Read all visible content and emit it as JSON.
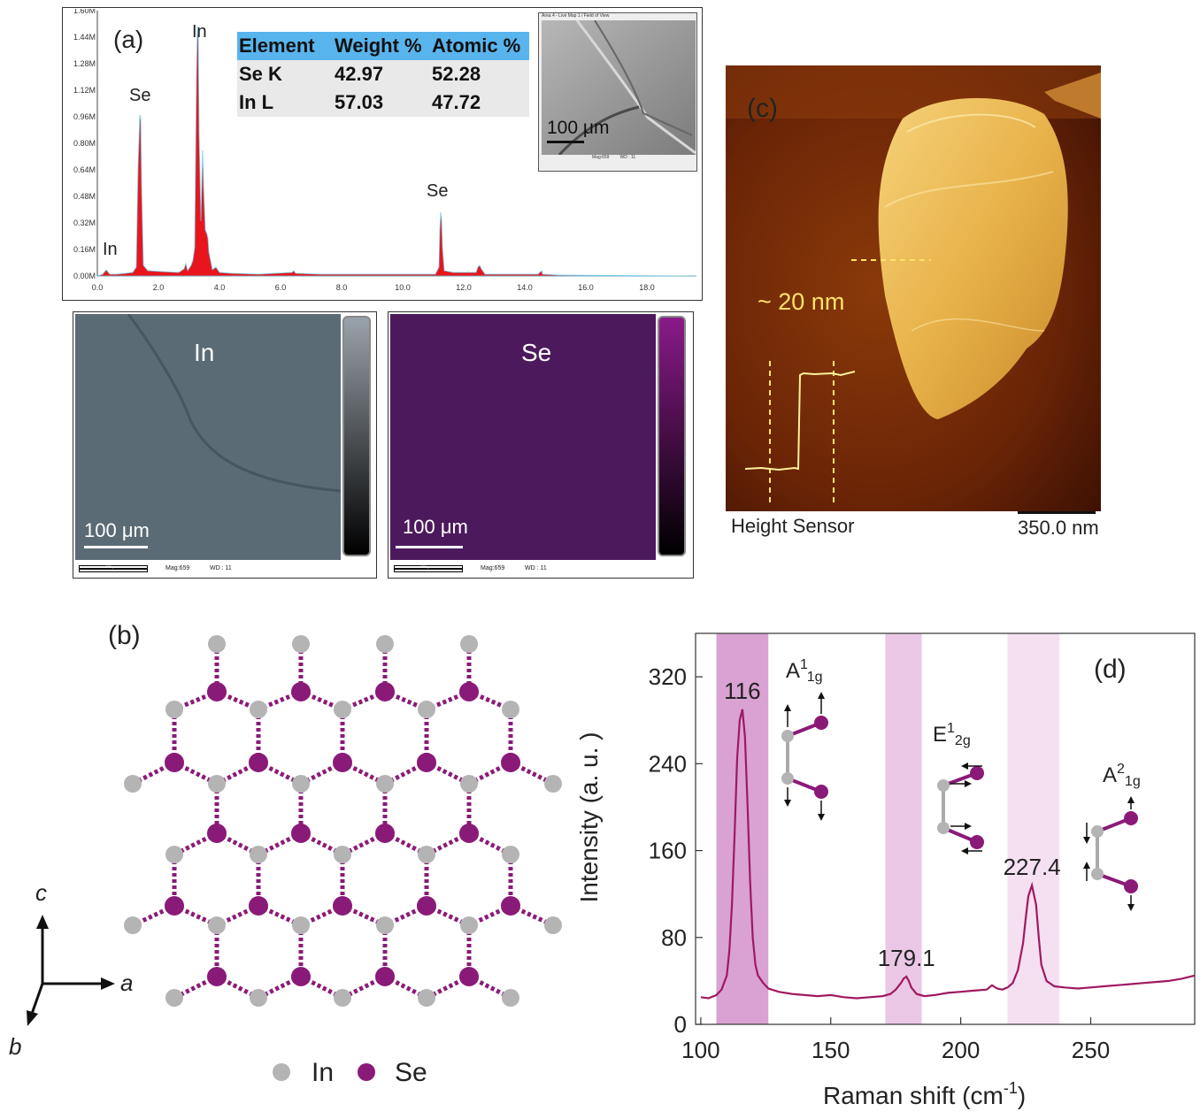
{
  "panel_a": {
    "label": "(a)",
    "spectrum": {
      "y_ticks": [
        "1.60M",
        "1.44M",
        "1.28M",
        "1.12M",
        "0.96M",
        "0.80M",
        "0.64M",
        "0.48M",
        "0.32M",
        "0.16M",
        "0.00M"
      ],
      "x_ticks": [
        "0.0",
        "2.0",
        "4.0",
        "6.0",
        "8.0",
        "10.0",
        "12.0",
        "14.0",
        "16.0",
        "18.0"
      ],
      "peak_labels": [
        "In",
        "Se",
        "In",
        "Se"
      ]
    },
    "table": {
      "headers": [
        "Element",
        "Weight %",
        "Atomic %"
      ],
      "rows": [
        [
          "Se K",
          "42.97",
          "52.28"
        ],
        [
          "In L",
          "57.03",
          "47.72"
        ]
      ]
    },
    "sem_inset": {
      "title": "Area 4 - Live Map 1 / Field of View",
      "scale": "100 μm",
      "mag": "Mag:659",
      "wd": "WD : 11"
    },
    "maps": [
      {
        "element": "In",
        "scale": "100 μm",
        "scale_small": "100 μm",
        "mag": "Mag:659",
        "wd": "WD : 11",
        "color": "#5b6b75"
      },
      {
        "element": "Se",
        "scale": "100 μm",
        "scale_small": "100 μm",
        "mag": "Mag:659",
        "wd": "WD : 11",
        "color": "#4c1a5c"
      }
    ]
  },
  "panel_b": {
    "label": "(b)",
    "axes": {
      "c": "c",
      "a": "a",
      "b": "b"
    },
    "legend": [
      {
        "name": "In",
        "color": "#b4b4b4"
      },
      {
        "name": "Se",
        "color": "#8a1a78"
      }
    ]
  },
  "panel_c": {
    "label": "(c)",
    "height_label": "~ 20 nm",
    "sensor_label": "Height Sensor",
    "scale_label": "350.0 nm"
  },
  "panel_d": {
    "label": "(d)",
    "modes": [
      {
        "pre": "A",
        "sup": "1",
        "sub": "1g"
      },
      {
        "pre": "E",
        "sup": "1",
        "sub": "2g"
      },
      {
        "pre": "A",
        "sup": "2",
        "sub": "1g"
      }
    ]
  },
  "chart_data": {
    "type": "line",
    "xlabel": "Raman shift (cm",
    "xlabel_sup": "-1",
    "xlabel_end": ")",
    "ylabel": "Intensity (a. u. )",
    "xlim": [
      98,
      290
    ],
    "ylim": [
      0,
      360
    ],
    "x_ticks": [
      100,
      150,
      200,
      250
    ],
    "y_ticks": [
      0,
      80,
      160,
      240,
      320
    ],
    "series": [
      {
        "color": "#a01860",
        "x": [
          100,
          103,
          106,
          108,
          110,
          111,
          112,
          113,
          114,
          115,
          116,
          117,
          118,
          119,
          120,
          121,
          122,
          124,
          126,
          130,
          135,
          140,
          145,
          150,
          155,
          160,
          165,
          170,
          173,
          175,
          177,
          178,
          179.1,
          180,
          181,
          183,
          186,
          190,
          195,
          200,
          205,
          210,
          212,
          214,
          216,
          218,
          220,
          222,
          224,
          225,
          226,
          227.4,
          229,
          230,
          231,
          233,
          236,
          240,
          245,
          250,
          255,
          260,
          265,
          270,
          275,
          280,
          285,
          290
        ],
        "y": [
          25,
          24,
          27,
          32,
          45,
          68,
          110,
          175,
          245,
          280,
          290,
          265,
          200,
          130,
          80,
          55,
          45,
          38,
          33,
          30,
          28,
          27,
          26,
          27,
          25,
          24,
          25,
          26,
          28,
          32,
          38,
          42,
          44,
          40,
          34,
          28,
          26,
          27,
          29,
          30,
          31,
          32,
          36,
          33,
          32,
          34,
          38,
          50,
          75,
          98,
          118,
          128,
          110,
          80,
          55,
          40,
          35,
          34,
          33,
          34,
          35,
          36,
          37,
          38,
          39,
          40,
          42,
          45
        ]
      }
    ],
    "peak_labels": [
      {
        "x": 116,
        "y": 290,
        "text": "116"
      },
      {
        "x": 179.1,
        "y": 44,
        "text": "179.1"
      },
      {
        "x": 227.4,
        "y": 128,
        "text": "227.4"
      }
    ],
    "bands": [
      {
        "x0": 106,
        "x1": 126,
        "color": "#c97ac0",
        "opacity": 0.7
      },
      {
        "x0": 171,
        "x1": 185,
        "color": "#d89ad0",
        "opacity": 0.55
      },
      {
        "x0": 218,
        "x1": 238,
        "color": "#ecc6e8",
        "opacity": 0.55
      }
    ]
  }
}
